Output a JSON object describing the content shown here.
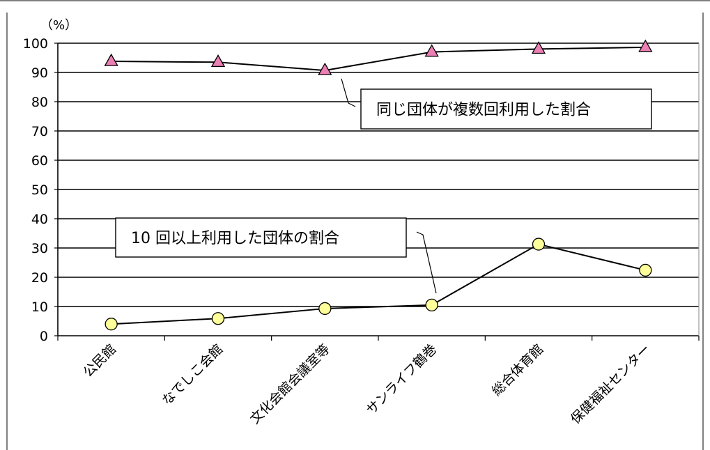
{
  "chart_data": {
    "type": "line",
    "y_unit": "（%）",
    "ylim": [
      0,
      100
    ],
    "y_ticks": [
      0,
      10,
      20,
      30,
      40,
      50,
      60,
      70,
      80,
      90,
      100
    ],
    "grid": true,
    "categories": [
      "公民館",
      "なでしこ会館",
      "文化会館会議室等",
      "サンライフ鶴巻",
      "総合体育館",
      "保健福祉センター"
    ],
    "series": [
      {
        "name": "同じ団体が複数回利用した割合",
        "marker": "triangle",
        "color": "#ec7fb4",
        "values": [
          93.8,
          93.5,
          90.7,
          97.0,
          98.0,
          98.6
        ]
      },
      {
        "name": "10 回以上利用した団体の割合",
        "marker": "circle",
        "color": "#ffff99",
        "values": [
          4.0,
          5.9,
          9.3,
          10.5,
          31.3,
          22.4
        ]
      }
    ]
  }
}
